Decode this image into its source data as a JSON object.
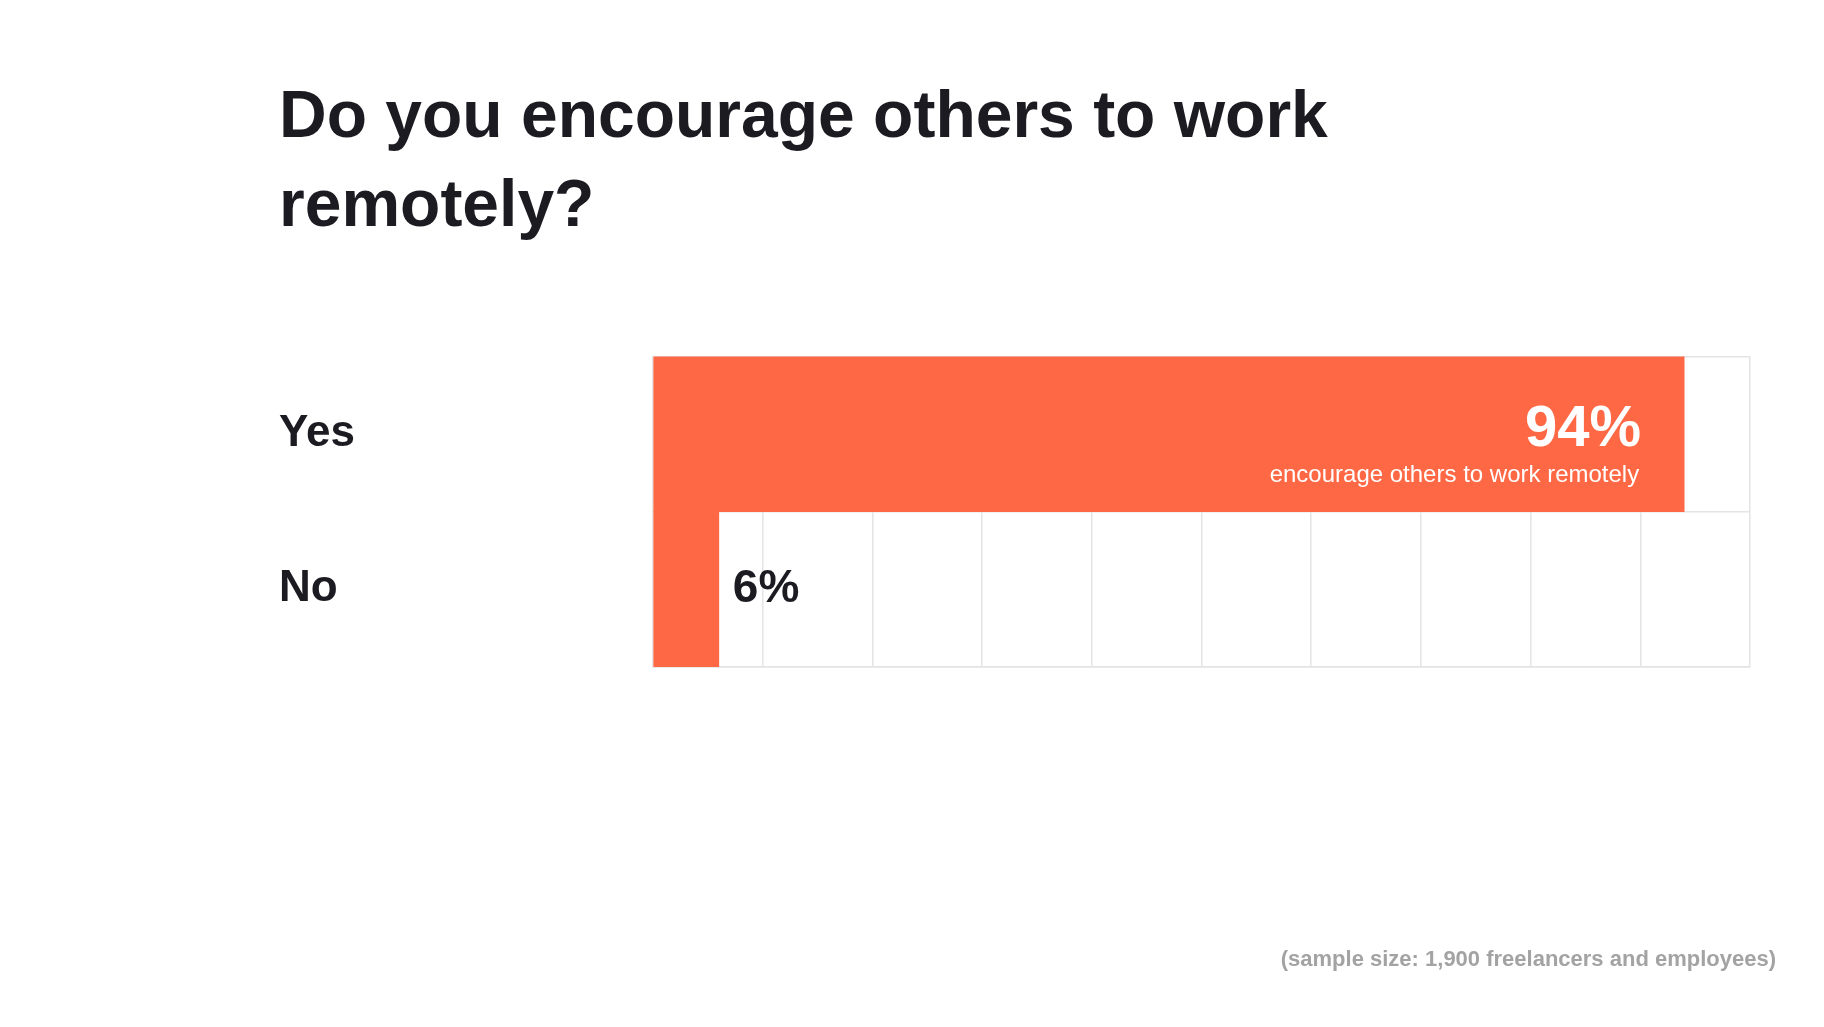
{
  "chart_data": {
    "type": "bar",
    "orientation": "horizontal",
    "title": "Do you encourage others to work remotely?",
    "categories": [
      "Yes",
      "No"
    ],
    "values": [
      94,
      6
    ],
    "color": "#ff6845",
    "value_labels": [
      "94%",
      "6%"
    ],
    "xlim": [
      0,
      100
    ],
    "xticks": [
      {
        "value": 0,
        "label": null
      },
      {
        "value": 10,
        "label": null
      },
      {
        "value": 20,
        "label": null
      },
      {
        "value": 30,
        "label": null
      },
      {
        "value": 40,
        "label": null
      },
      {
        "value": 50,
        "label": null
      },
      {
        "value": 60,
        "label": null
      },
      {
        "value": 70,
        "label": null
      },
      {
        "value": 80,
        "label": null
      },
      {
        "value": 90,
        "label": null
      },
      {
        "value": 100,
        "label": null
      }
    ],
    "grid": true,
    "tick_labels": "y",
    "annotations": [
      {
        "text": "encourage others to work remotely",
        "x": 94,
        "y": "Yes"
      },
      "(sample size: 1,900 freelancers and employees)"
    ]
  }
}
